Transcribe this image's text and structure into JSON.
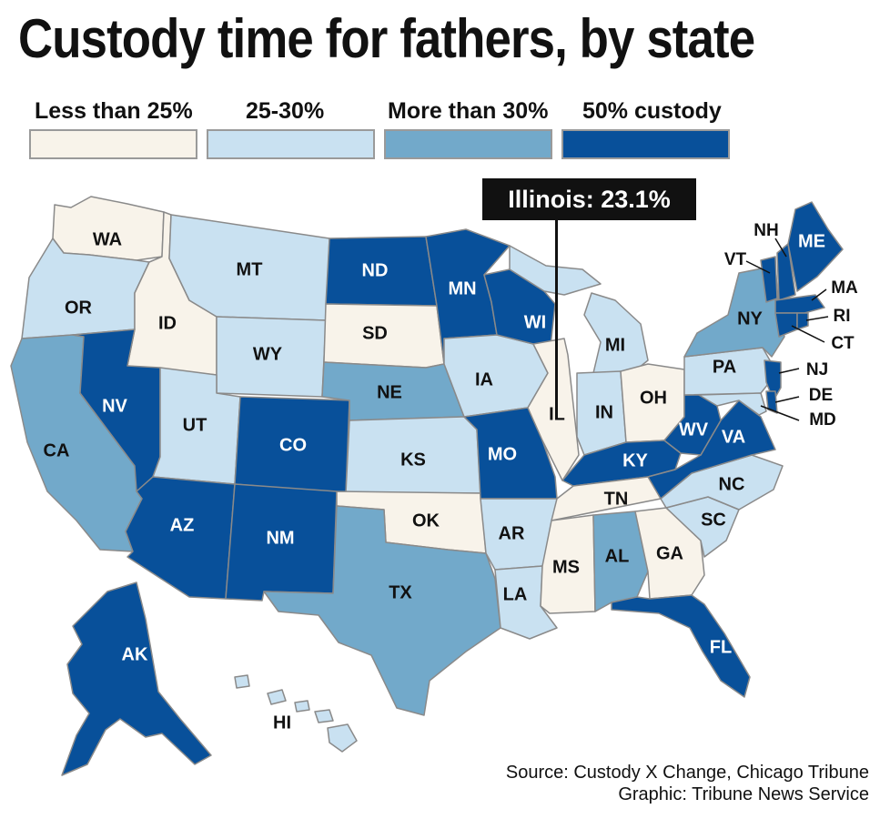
{
  "title": "Custody time for fathers, by state",
  "legend": [
    {
      "label": "Less than 25%",
      "color": "#f8f3ea"
    },
    {
      "label": "25-30%",
      "color": "#c9e1f1"
    },
    {
      "label": "More than 30%",
      "color": "#72a9ca"
    },
    {
      "label": "50% custody",
      "color": "#08509a"
    }
  ],
  "callout": "Illinois: 23.1%",
  "credits": {
    "source": "Source: Custody X Change, Chicago Tribune",
    "graphic": "Graphic: Tribune News Service"
  },
  "chart_data": {
    "type": "choropleth",
    "categories": [
      "Less than 25%",
      "25-30%",
      "More than 30%",
      "50% custody"
    ],
    "states": {
      "WA": "Less than 25%",
      "OR": "25-30%",
      "CA": "More than 30%",
      "ID": "Less than 25%",
      "NV": "50% custody",
      "MT": "25-30%",
      "WY": "25-30%",
      "UT": "25-30%",
      "AZ": "50% custody",
      "CO": "50% custody",
      "NM": "50% custody",
      "ND": "50% custody",
      "SD": "Less than 25%",
      "NE": "More than 30%",
      "KS": "25-30%",
      "OK": "Less than 25%",
      "TX": "More than 30%",
      "MN": "50% custody",
      "IA": "25-30%",
      "MO": "50% custody",
      "AR": "25-30%",
      "LA": "25-30%",
      "WI": "50% custody",
      "IL": "Less than 25%",
      "MI": "25-30%",
      "IN": "25-30%",
      "OH": "Less than 25%",
      "KY": "50% custody",
      "TN": "Less than 25%",
      "MS": "Less than 25%",
      "AL": "More than 30%",
      "GA": "Less than 25%",
      "FL": "50% custody",
      "SC": "25-30%",
      "NC": "25-30%",
      "VA": "50% custody",
      "WV": "50% custody",
      "PA": "25-30%",
      "NY": "More than 30%",
      "VT": "50% custody",
      "NH": "50% custody",
      "ME": "50% custody",
      "MA": "50% custody",
      "RI": "50% custody",
      "CT": "50% custody",
      "NJ": "50% custody",
      "DE": "50% custody",
      "MD": "25-30%",
      "AK": "50% custody",
      "HI": "25-30%"
    },
    "highlight": {
      "state": "IL",
      "value": 23.1
    }
  }
}
